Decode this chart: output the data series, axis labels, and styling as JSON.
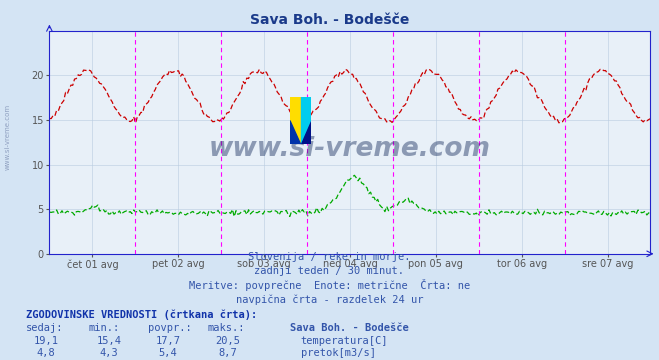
{
  "title": "Sava Boh. - Bodešče",
  "title_color": "#1a3a8a",
  "bg_color": "#d4e4f4",
  "plot_bg_color": "#e8f0f8",
  "grid_color": "#b8cce0",
  "axis_color": "#2222cc",
  "xlabel_ticks": [
    "čet 01 avg",
    "pet 02 avg",
    "sob 03 avg",
    "ned 04 avg",
    "pon 05 avg",
    "tor 06 avg",
    "sre 07 avg"
  ],
  "temp_color": "#cc0000",
  "flow_color": "#00aa00",
  "vline_color": "#ff00ff",
  "temp_min": 15.4,
  "temp_max": 20.5,
  "temp_avg": 17.7,
  "flow_min": 4.3,
  "flow_max": 8.7,
  "flow_avg": 5.4,
  "watermark": "www.si-vreme.com",
  "watermark_color": "#1a3060",
  "left_watermark_color": "#8899bb",
  "subtitle1": "Slovenija / reke in morje.",
  "subtitle2": "zadnji teden / 30 minut.",
  "subtitle3": "Meritve: povprečne  Enote: metrične  Črta: ne",
  "subtitle4": "navpična črta - razdelek 24 ur",
  "table_header": "ZGODOVINSKE VREDNOSTI (črtkana črta):",
  "col_headers": [
    "sedaj:",
    "min.:",
    "povpr.:",
    "maks.:",
    "Sava Boh. - Bodešče"
  ],
  "row1_vals": [
    "19,1",
    "15,4",
    "17,7",
    "20,5"
  ],
  "row1_label": "temperatura[C]",
  "row2_vals": [
    "4,8",
    "4,3",
    "5,4",
    "8,7"
  ],
  "row2_label": "pretok[m3/s]",
  "n_points": 336,
  "y_max": 25
}
